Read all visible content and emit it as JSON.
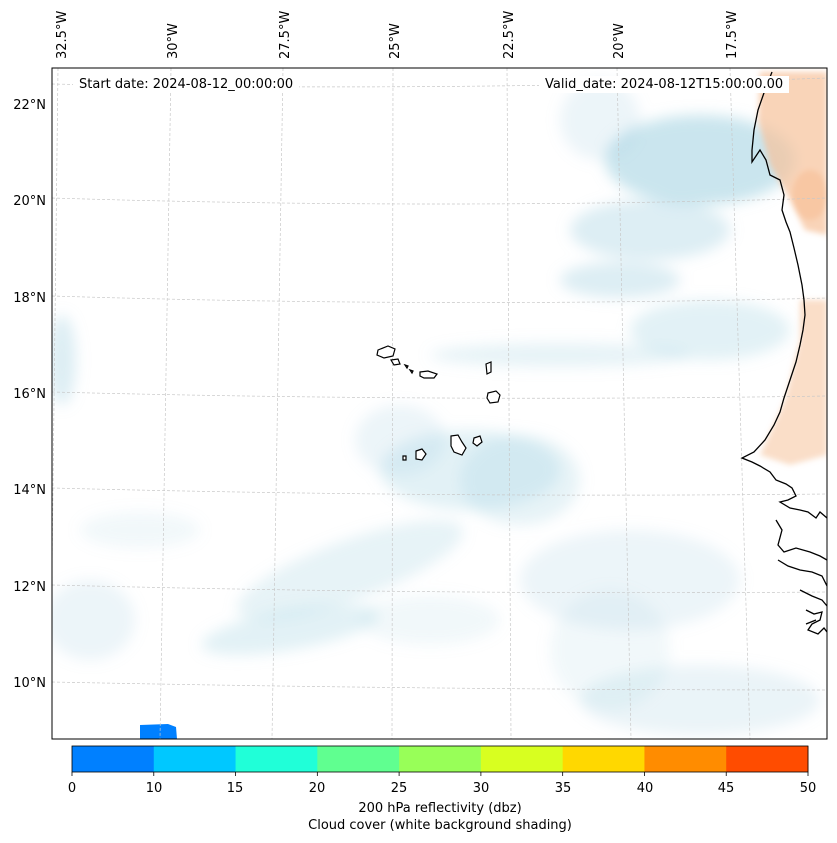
{
  "map": {
    "start_label": "Start date: 2024-08-12_00:00:00",
    "valid_label": "Valid_date: 2024-08-12T15:00:00.00",
    "longitude_labels": [
      "32.5°W",
      "30°W",
      "27.5°W",
      "25°W",
      "22.5°W",
      "20°W",
      "17.5°W"
    ],
    "latitude_labels": [
      "22°N",
      "20°N",
      "18°N",
      "16°N",
      "14°N",
      "12°N",
      "10°N"
    ],
    "colors": {
      "cloud": "#9fcfe0",
      "warm_shading": "#f6c29a",
      "coast": "#000000",
      "grid": "#c8c8c8"
    }
  },
  "colorbar": {
    "ticks": [
      "0",
      "10",
      "15",
      "20",
      "25",
      "30",
      "35",
      "40",
      "45",
      "50"
    ],
    "colors": [
      "#0080ff",
      "#00c8ff",
      "#20ffd8",
      "#60ff90",
      "#98ff58",
      "#d8ff20",
      "#ffd800",
      "#ff8c00",
      "#ff4c00"
    ],
    "label_line1": "200 hPa reflectivity (dbz)",
    "label_line2": "Cloud cover (white background shading)"
  }
}
